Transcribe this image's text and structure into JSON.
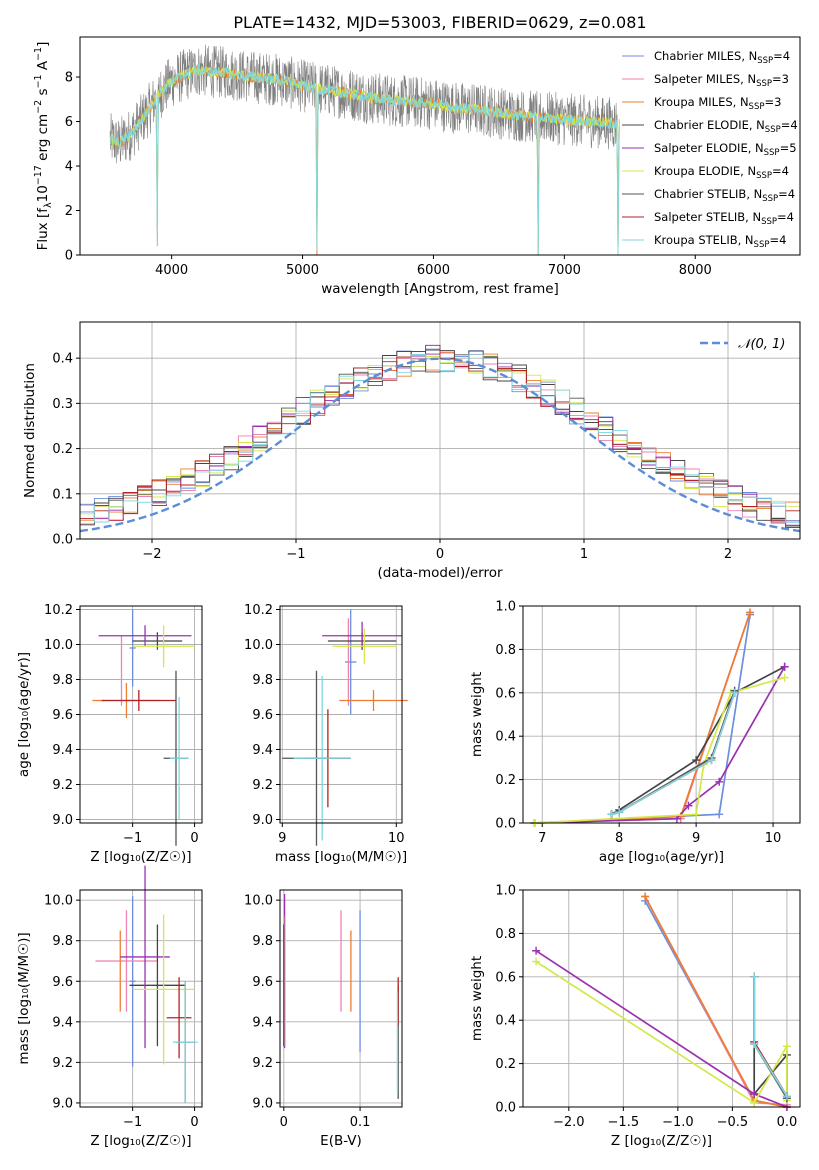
{
  "figure_title": "PLATE=1432, MJD=53003, FIBERID=0629, z=0.081",
  "colors": {
    "spec_data": "#808080",
    "chabrier_miles": "#6b8fde",
    "salpeter_miles": "#ee82b2",
    "kroupa_miles": "#ed7d31",
    "chabrier_elodie": "#444444",
    "salpeter_elodie": "#9b30b0",
    "kroupa_elodie": "#d4e84a",
    "chabrier_stelib": "#555555",
    "salpeter_stelib": "#b22222",
    "kroupa_stelib": "#7fd6e0",
    "gauss": "#5b8ed6"
  },
  "chart_data": [
    {
      "type": "line",
      "id": "spectrum",
      "title": "PLATE=1432, MJD=53003, FIBERID=0629, z=0.081",
      "xlabel": "wavelength [Angstrom, rest frame]",
      "ylabel_parts": [
        "Flux [f",
        "λ",
        "10",
        "−17",
        " erg cm",
        "−2",
        " s",
        "−1",
        " A",
        "−1",
        "]"
      ],
      "xlim": [
        3300,
        8800
      ],
      "ylim": [
        0,
        9.8
      ],
      "xticks": [
        4000,
        5000,
        6000,
        7000,
        8000
      ],
      "yticks": [
        0,
        2,
        4,
        6,
        8
      ],
      "grid": false,
      "legend_position": "upper-right",
      "data_range": [
        3530,
        7420
      ],
      "legend": [
        {
          "name": "Chabrier MILES, N",
          "sub": "SSP",
          "suffix": "=4",
          "color_key": "chabrier_miles"
        },
        {
          "name": "Salpeter MILES, N",
          "sub": "SSP",
          "suffix": "=3",
          "color_key": "salpeter_miles"
        },
        {
          "name": "Kroupa MILES, N",
          "sub": "SSP",
          "suffix": "=3",
          "color_key": "kroupa_miles"
        },
        {
          "name": "Chabrier ELODIE, N",
          "sub": "SSP",
          "suffix": "=4",
          "color_key": "chabrier_elodie"
        },
        {
          "name": "Salpeter ELODIE, N",
          "sub": "SSP",
          "suffix": "=5",
          "color_key": "salpeter_elodie"
        },
        {
          "name": "Kroupa ELODIE, N",
          "sub": "SSP",
          "suffix": "=4",
          "color_key": "kroupa_elodie"
        },
        {
          "name": "Chabrier STELIB, N",
          "sub": "SSP",
          "suffix": "=4",
          "color_key": "chabrier_stelib"
        },
        {
          "name": "Salpeter STELIB, N",
          "sub": "SSP",
          "suffix": "=4",
          "color_key": "salpeter_stelib"
        },
        {
          "name": "Kroupa STELIB, N",
          "sub": "SSP",
          "suffix": "=4",
          "color_key": "kroupa_stelib"
        }
      ],
      "continuum_model": {
        "x": [
          3530,
          3600,
          3700,
          3800,
          3900,
          4000,
          4100,
          4200,
          4400,
          4600,
          4800,
          5000,
          5200,
          5400,
          5600,
          5800,
          6000,
          6200,
          6400,
          6600,
          6800,
          7000,
          7200,
          7420
        ],
        "y": [
          5.2,
          5.0,
          5.5,
          6.3,
          7.2,
          7.8,
          8.1,
          8.3,
          8.2,
          8.0,
          7.9,
          7.6,
          7.4,
          7.2,
          7.0,
          6.9,
          6.8,
          6.6,
          6.5,
          6.3,
          6.2,
          6.1,
          6.0,
          5.9
        ]
      },
      "data_noise_amplitude": 1.2,
      "absorption_dips": [
        {
          "x": 3890,
          "depth": 5.8
        },
        {
          "x": 5110,
          "depth": 7.4
        },
        {
          "x": 6800,
          "depth": 6.3
        },
        {
          "x": 7410,
          "depth": 6.0
        }
      ]
    },
    {
      "type": "histogram",
      "id": "residuals",
      "xlabel": "(data-model)/error",
      "ylabel": "Normed distribution",
      "xlim": [
        -2.5,
        2.5
      ],
      "ylim": [
        0,
        0.48
      ],
      "xticks": [
        -2,
        -1,
        0,
        1,
        2
      ],
      "xtick_labels": [
        "−2",
        "−1",
        "0",
        "1",
        "2"
      ],
      "yticks": [
        0.0,
        0.1,
        0.2,
        0.3,
        0.4
      ],
      "grid": true,
      "legend": [
        {
          "name": "𝒩(0, 1)",
          "color_key": "gauss",
          "style": "dashed"
        }
      ],
      "legend_position": "upper-right",
      "bin_width": 0.1,
      "bin_start": -2.5,
      "histogram_scatter": 0.03,
      "series_color_keys": [
        "chabrier_miles",
        "salpeter_miles",
        "kroupa_miles",
        "chabrier_elodie",
        "salpeter_elodie",
        "kroupa_elodie",
        "chabrier_stelib",
        "salpeter_stelib",
        "kroupa_stelib"
      ]
    },
    {
      "type": "scatter",
      "id": "age-vs-Z",
      "xlabel": "Z [log₁₀(Z/Z☉)]",
      "ylabel": "age  [log₁₀(age/yr)]",
      "xlim": [
        -1.85,
        0.12
      ],
      "ylim": [
        8.98,
        10.22
      ],
      "xticks": [
        -1,
        0
      ],
      "xtick_labels": [
        "−1",
        "0"
      ],
      "yticks": [
        9.0,
        9.2,
        9.4,
        9.6,
        9.8,
        10.0,
        10.2
      ],
      "grid": true,
      "points": [
        {
          "x": -1.0,
          "xerr": 0.05,
          "y": 9.98,
          "yerr": 0.22,
          "color_key": "chabrier_miles"
        },
        {
          "x": -1.18,
          "xerr": 0.0,
          "y": 9.85,
          "yerr": 0.2,
          "color_key": "salpeter_miles"
        },
        {
          "x": -1.1,
          "xerr": 0.55,
          "y": 9.68,
          "yerr": 0.1,
          "color_key": "kroupa_miles"
        },
        {
          "x": -0.6,
          "xerr": 0.4,
          "y": 10.02,
          "yerr": 0.05,
          "color_key": "chabrier_elodie"
        },
        {
          "x": -0.8,
          "xerr": 0.75,
          "y": 10.05,
          "yerr": 0.06,
          "color_key": "salpeter_elodie"
        },
        {
          "x": -0.5,
          "xerr": 0.5,
          "y": 9.99,
          "yerr": 0.12,
          "color_key": "kroupa_elodie"
        },
        {
          "x": -0.3,
          "xerr": 0.2,
          "y": 9.35,
          "yerr": 0.5,
          "color_key": "chabrier_stelib"
        },
        {
          "x": -0.9,
          "xerr": 0.6,
          "y": 9.68,
          "yerr": 0.06,
          "color_key": "salpeter_stelib"
        },
        {
          "x": -0.25,
          "xerr": 0.15,
          "y": 9.35,
          "yerr": 0.35,
          "color_key": "kroupa_stelib"
        }
      ]
    },
    {
      "type": "scatter",
      "id": "age-vs-mass",
      "xlabel": "mass [log₁₀(M/M☉)]",
      "ylabel": "",
      "xlim": [
        8.98,
        10.05
      ],
      "ylim": [
        8.98,
        10.22
      ],
      "xticks": [
        9,
        10
      ],
      "yticks": [
        9.0,
        9.2,
        9.4,
        9.6,
        9.8,
        10.0,
        10.2
      ],
      "grid": true,
      "points": [
        {
          "x": 9.6,
          "xerr": 0.05,
          "y": 9.9,
          "yerr": 0.3,
          "color_key": "chabrier_miles"
        },
        {
          "x": 9.58,
          "xerr": 0.0,
          "y": 9.9,
          "yerr": 0.25,
          "color_key": "salpeter_miles"
        },
        {
          "x": 9.8,
          "xerr": 0.3,
          "y": 9.68,
          "yerr": 0.06,
          "color_key": "kroupa_miles"
        },
        {
          "x": 9.7,
          "xerr": 0.3,
          "y": 10.02,
          "yerr": 0.05,
          "color_key": "chabrier_elodie"
        },
        {
          "x": 9.7,
          "xerr": 0.35,
          "y": 10.05,
          "yerr": 0.08,
          "color_key": "salpeter_elodie"
        },
        {
          "x": 9.72,
          "xerr": 0.28,
          "y": 9.99,
          "yerr": 0.1,
          "color_key": "kroupa_elodie"
        },
        {
          "x": 9.3,
          "xerr": 0.3,
          "y": 9.35,
          "yerr": 0.5,
          "color_key": "chabrier_stelib"
        },
        {
          "x": 9.4,
          "xerr": 0.2,
          "y": 9.35,
          "yerr": 0.28,
          "color_key": "salpeter_stelib"
        },
        {
          "x": 9.35,
          "xerr": 0.25,
          "y": 9.35,
          "yerr": 0.47,
          "color_key": "kroupa_stelib"
        }
      ]
    },
    {
      "type": "line",
      "id": "massweight-vs-age",
      "xlabel": "age  [log₁₀(age/yr)]",
      "ylabel": "mass weight",
      "xlim": [
        6.75,
        10.35
      ],
      "ylim": [
        0,
        1
      ],
      "xticks": [
        7,
        8,
        9,
        10
      ],
      "yticks": [
        0.0,
        0.2,
        0.4,
        0.6,
        0.8,
        1.0
      ],
      "grid": true,
      "series": [
        {
          "color_key": "chabrier_miles",
          "x": [
            6.9,
            9.3,
            9.7
          ],
          "y": [
            0.0,
            0.04,
            0.96
          ]
        },
        {
          "color_key": "salpeter_miles",
          "x": [
            6.9,
            8.8,
            9.7
          ],
          "y": [
            0.0,
            0.02,
            0.97
          ]
        },
        {
          "color_key": "kroupa_miles",
          "x": [
            6.9,
            8.8,
            9.7
          ],
          "y": [
            0.0,
            0.03,
            0.97
          ]
        },
        {
          "color_key": "chabrier_elodie",
          "x": [
            7.9,
            8.0,
            9.0,
            9.5,
            10.15
          ],
          "y": [
            0.04,
            0.06,
            0.29,
            0.6,
            0.72
          ]
        },
        {
          "color_key": "salpeter_elodie",
          "x": [
            6.9,
            8.75,
            8.9,
            9.3,
            10.15
          ],
          "y": [
            0.0,
            0.02,
            0.08,
            0.19,
            0.72
          ]
        },
        {
          "color_key": "kroupa_elodie",
          "x": [
            6.9,
            9.0,
            9.1,
            9.45,
            10.15
          ],
          "y": [
            0.0,
            0.04,
            0.27,
            0.6,
            0.67
          ]
        },
        {
          "color_key": "chabrier_stelib",
          "x": [
            7.9,
            8.0,
            9.2,
            9.5
          ],
          "y": [
            0.04,
            0.05,
            0.3,
            0.61
          ]
        },
        {
          "color_key": "salpeter_stelib",
          "x": [
            7.9,
            8.0,
            9.2,
            9.5
          ],
          "y": [
            0.04,
            0.05,
            0.29,
            0.6
          ]
        },
        {
          "color_key": "kroupa_stelib",
          "x": [
            7.9,
            8.0,
            9.2,
            9.5
          ],
          "y": [
            0.04,
            0.05,
            0.29,
            0.6
          ]
        }
      ]
    },
    {
      "type": "scatter",
      "id": "mass-vs-Z",
      "xlabel": "Z [log₁₀(Z/Z☉)]",
      "ylabel": "mass [log₁₀(M/M☉)]",
      "xlim": [
        -1.85,
        0.12
      ],
      "ylim": [
        8.98,
        10.05
      ],
      "xticks": [
        -1,
        0
      ],
      "xtick_labels": [
        "−1",
        "0"
      ],
      "yticks": [
        9.0,
        9.2,
        9.4,
        9.6,
        9.8,
        10.0
      ],
      "grid": true,
      "points": [
        {
          "x": -1.0,
          "xerr": 0.05,
          "y": 9.6,
          "yerr": 0.42,
          "color_key": "chabrier_miles"
        },
        {
          "x": -1.1,
          "xerr": 0.5,
          "y": 9.7,
          "yerr": 0.25,
          "color_key": "salpeter_miles"
        },
        {
          "x": -1.2,
          "xerr": 0.0,
          "y": 9.65,
          "yerr": 0.2,
          "color_key": "kroupa_miles"
        },
        {
          "x": -0.6,
          "xerr": 0.45,
          "y": 9.58,
          "yerr": 0.3,
          "color_key": "chabrier_elodie"
        },
        {
          "x": -0.8,
          "xerr": 0.4,
          "y": 9.72,
          "yerr": 0.45,
          "color_key": "salpeter_elodie"
        },
        {
          "x": -0.5,
          "xerr": 0.5,
          "y": 9.56,
          "yerr": 0.37,
          "color_key": "kroupa_elodie"
        },
        {
          "x": -0.15,
          "xerr": 0.15,
          "y": 9.3,
          "yerr": 0.3,
          "color_key": "chabrier_stelib"
        },
        {
          "x": -0.25,
          "xerr": 0.2,
          "y": 9.42,
          "yerr": 0.2,
          "color_key": "salpeter_stelib"
        },
        {
          "x": -0.15,
          "xerr": 0.2,
          "y": 9.3,
          "yerr": 0.3,
          "color_key": "kroupa_stelib"
        }
      ]
    },
    {
      "type": "scatter",
      "id": "mass-vs-ebv",
      "xlabel": "E(B-V)",
      "ylabel": "",
      "xlim": [
        -0.005,
        0.155
      ],
      "ylim": [
        8.98,
        10.05
      ],
      "xticks": [
        0.0,
        0.1
      ],
      "yticks": [
        9.0,
        9.2,
        9.4,
        9.6,
        9.8,
        10.0
      ],
      "grid": true,
      "points": [
        {
          "x": 0.1,
          "xerr": 0.0,
          "y": 9.6,
          "yerr": 0.35,
          "color_key": "chabrier_miles"
        },
        {
          "x": 0.075,
          "xerr": 0.0,
          "y": 9.7,
          "yerr": 0.25,
          "color_key": "salpeter_miles"
        },
        {
          "x": 0.088,
          "xerr": 0.0,
          "y": 9.65,
          "yerr": 0.2,
          "color_key": "kroupa_miles"
        },
        {
          "x": 0.0,
          "xerr": 0.0,
          "y": 9.58,
          "yerr": 0.3,
          "color_key": "chabrier_elodie"
        },
        {
          "x": 0.001,
          "xerr": 0.0,
          "y": 9.65,
          "yerr": 0.38,
          "color_key": "salpeter_elodie"
        },
        {
          "x": 0.002,
          "xerr": 0.0,
          "y": 9.6,
          "yerr": 0.32,
          "color_key": "kroupa_elodie"
        },
        {
          "x": 0.15,
          "xerr": 0.0,
          "y": 9.3,
          "yerr": 0.28,
          "color_key": "chabrier_stelib"
        },
        {
          "x": 0.15,
          "xerr": 0.0,
          "y": 9.5,
          "yerr": 0.12,
          "color_key": "salpeter_stelib"
        },
        {
          "x": 0.149,
          "xerr": 0.0,
          "y": 9.3,
          "yerr": 0.25,
          "color_key": "kroupa_stelib"
        }
      ]
    },
    {
      "type": "line",
      "id": "massweight-vs-Z",
      "xlabel": "Z [log₁₀(Z/Z☉)]",
      "ylabel": "mass weight",
      "xlim": [
        -2.42,
        0.12
      ],
      "ylim": [
        0,
        1
      ],
      "xticks": [
        -2.0,
        -1.5,
        -1.0,
        -0.5,
        0.0
      ],
      "xtick_labels": [
        "−2.0",
        "−1.5",
        "−1.0",
        "−0.5",
        "0.0"
      ],
      "yticks": [
        0.0,
        0.2,
        0.4,
        0.6,
        0.8,
        1.0
      ],
      "grid": true,
      "series": [
        {
          "color_key": "chabrier_miles",
          "x": [
            -1.3,
            -0.3,
            0.0
          ],
          "y": [
            0.95,
            0.03,
            0.0
          ]
        },
        {
          "color_key": "salpeter_miles",
          "x": [
            -1.3,
            -0.3,
            0.0
          ],
          "y": [
            0.97,
            0.02,
            0.01
          ]
        },
        {
          "color_key": "kroupa_miles",
          "x": [
            -1.3,
            -0.3,
            0.0
          ],
          "y": [
            0.97,
            0.03,
            0.0
          ]
        },
        {
          "color_key": "chabrier_elodie",
          "x": [
            -0.3,
            -0.3,
            0.0,
            0.0
          ],
          "y": [
            0.6,
            0.06,
            0.24,
            0.05
          ]
        },
        {
          "color_key": "salpeter_elodie",
          "x": [
            -2.3,
            -0.3,
            0.0
          ],
          "y": [
            0.72,
            0.06,
            0.0
          ]
        },
        {
          "color_key": "kroupa_elodie",
          "x": [
            -2.3,
            -0.3,
            0.0,
            0.0
          ],
          "y": [
            0.67,
            0.02,
            0.28,
            0.03
          ]
        },
        {
          "color_key": "chabrier_stelib",
          "x": [
            -0.3,
            -0.3,
            0.0
          ],
          "y": [
            0.6,
            0.29,
            0.04
          ]
        },
        {
          "color_key": "salpeter_stelib",
          "x": [
            -0.3,
            -0.3,
            0.0
          ],
          "y": [
            0.6,
            0.3,
            0.05
          ]
        },
        {
          "color_key": "kroupa_stelib",
          "x": [
            -0.3,
            -0.3,
            0.0
          ],
          "y": [
            0.6,
            0.29,
            0.05
          ]
        }
      ]
    }
  ]
}
